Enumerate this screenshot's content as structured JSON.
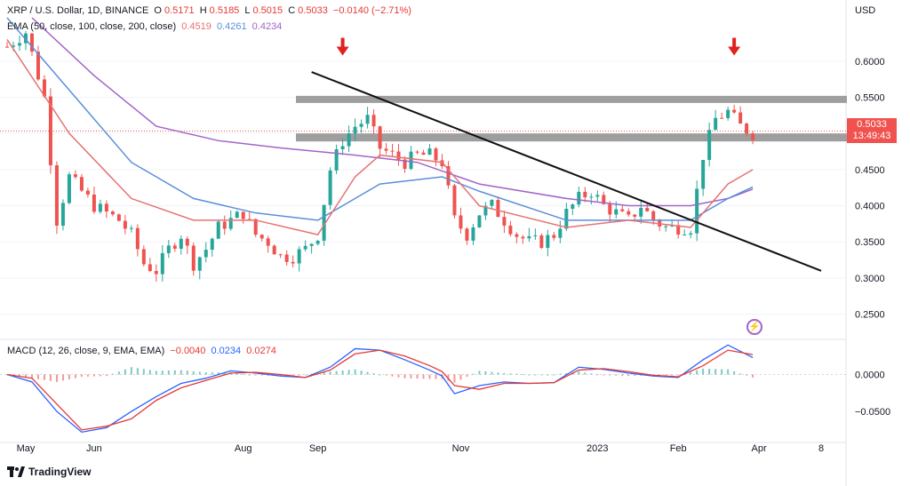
{
  "header": {
    "symbol": "XRP / U.S. Dollar, 1D, BINANCE",
    "o_label": "O",
    "o_value": "0.5171",
    "h_label": "H",
    "h_value": "0.5185",
    "l_label": "L",
    "l_value": "0.5015",
    "c_label": "C",
    "c_value": "0.5033",
    "change": "−0.0140 (−2.71%)"
  },
  "ema_legend": {
    "title": "EMA (50, close, 100, close, 200, close)",
    "ema50": "0.4519",
    "ema100": "0.4261",
    "ema200": "0.4234"
  },
  "macd_legend": {
    "title": "MACD (12, 26, close, 9, EMA, EMA)",
    "hist": "−0.0040",
    "macd": "0.0234",
    "signal": "0.0274"
  },
  "currency": "USD",
  "price_tag": {
    "price": "0.5033",
    "countdown": "13:49:43"
  },
  "price_axis": [
    "0.6000",
    "0.5500",
    "0.5000",
    "0.4500",
    "0.4000",
    "0.3500",
    "0.3000",
    "0.2500"
  ],
  "macd_axis": [
    "0.0000",
    "−0.0500"
  ],
  "time_axis": [
    "May",
    "Jun",
    "Aug",
    "Sep",
    "Nov",
    "2023",
    "Feb",
    "Apr",
    "8"
  ],
  "logo_text": "TradingView",
  "icons": {
    "logo": "tradingview-logo-icon",
    "flash": "lightning-icon",
    "arrow": "arrow-down-icon"
  },
  "colors": {
    "up": "#26a69a",
    "down": "#ef5350",
    "ema50": "#e57373",
    "ema100": "#5b8fd8",
    "ema200": "#a264c8",
    "macd": "#2962ff",
    "signal": "#e53935",
    "zone": "#9e9e9e",
    "trendline": "#111111",
    "arrow": "#e0221f",
    "price_tag": "#f0524f"
  },
  "chart_data": {
    "type": "candlestick",
    "symbol": "XRP/USD",
    "interval": "1D",
    "y_range": [
      0.22,
      0.66
    ],
    "ohlc_close_path": [
      [
        0,
        0.62
      ],
      [
        3,
        0.64
      ],
      [
        6,
        0.55
      ],
      [
        8,
        0.38
      ],
      [
        10,
        0.44
      ],
      [
        12,
        0.42
      ],
      [
        14,
        0.4
      ],
      [
        16,
        0.39
      ],
      [
        18,
        0.38
      ],
      [
        20,
        0.36
      ],
      [
        22,
        0.32
      ],
      [
        24,
        0.31
      ],
      [
        26,
        0.34
      ],
      [
        28,
        0.36
      ],
      [
        30,
        0.32
      ],
      [
        32,
        0.34
      ],
      [
        34,
        0.37
      ],
      [
        36,
        0.38
      ],
      [
        38,
        0.39
      ],
      [
        40,
        0.36
      ],
      [
        42,
        0.35
      ],
      [
        44,
        0.33
      ],
      [
        46,
        0.33
      ],
      [
        48,
        0.34
      ],
      [
        50,
        0.36
      ],
      [
        52,
        0.45
      ],
      [
        54,
        0.49
      ],
      [
        56,
        0.51
      ],
      [
        58,
        0.52
      ],
      [
        60,
        0.48
      ],
      [
        62,
        0.47
      ],
      [
        64,
        0.46
      ],
      [
        66,
        0.47
      ],
      [
        68,
        0.47
      ],
      [
        70,
        0.46
      ],
      [
        72,
        0.38
      ],
      [
        74,
        0.36
      ],
      [
        76,
        0.39
      ],
      [
        78,
        0.4
      ],
      [
        80,
        0.38
      ],
      [
        82,
        0.36
      ],
      [
        84,
        0.35
      ],
      [
        86,
        0.35
      ],
      [
        88,
        0.36
      ],
      [
        90,
        0.39
      ],
      [
        92,
        0.41
      ],
      [
        94,
        0.42
      ],
      [
        96,
        0.4
      ],
      [
        98,
        0.39
      ],
      [
        100,
        0.38
      ],
      [
        102,
        0.4
      ],
      [
        104,
        0.38
      ],
      [
        106,
        0.37
      ],
      [
        108,
        0.37
      ],
      [
        110,
        0.37
      ],
      [
        112,
        0.47
      ],
      [
        114,
        0.52
      ],
      [
        116,
        0.53
      ],
      [
        118,
        0.51
      ],
      [
        120,
        0.5
      ]
    ],
    "ema50_path": [
      [
        0,
        0.63
      ],
      [
        10,
        0.5
      ],
      [
        20,
        0.41
      ],
      [
        30,
        0.38
      ],
      [
        40,
        0.38
      ],
      [
        50,
        0.36
      ],
      [
        56,
        0.44
      ],
      [
        60,
        0.47
      ],
      [
        70,
        0.46
      ],
      [
        76,
        0.4
      ],
      [
        90,
        0.37
      ],
      [
        100,
        0.38
      ],
      [
        110,
        0.37
      ],
      [
        116,
        0.43
      ],
      [
        120,
        0.45
      ]
    ],
    "ema100_path": [
      [
        0,
        0.66
      ],
      [
        10,
        0.56
      ],
      [
        20,
        0.46
      ],
      [
        30,
        0.41
      ],
      [
        40,
        0.39
      ],
      [
        50,
        0.38
      ],
      [
        56,
        0.41
      ],
      [
        60,
        0.43
      ],
      [
        70,
        0.44
      ],
      [
        76,
        0.42
      ],
      [
        90,
        0.38
      ],
      [
        100,
        0.38
      ],
      [
        110,
        0.38
      ],
      [
        116,
        0.41
      ],
      [
        120,
        0.426
      ]
    ],
    "ema200_path": [
      [
        4,
        0.66
      ],
      [
        14,
        0.58
      ],
      [
        24,
        0.51
      ],
      [
        34,
        0.49
      ],
      [
        44,
        0.48
      ],
      [
        56,
        0.47
      ],
      [
        66,
        0.46
      ],
      [
        76,
        0.43
      ],
      [
        90,
        0.41
      ],
      [
        100,
        0.4
      ],
      [
        110,
        0.4
      ],
      [
        116,
        0.41
      ],
      [
        120,
        0.423
      ]
    ],
    "resistance_zones": [
      [
        0.545,
        0.552
      ],
      [
        0.492,
        0.5
      ]
    ],
    "trendline": {
      "from": [
        49,
        0.585
      ],
      "to": [
        131,
        0.31
      ]
    },
    "current_price": 0.5033,
    "macd": {
      "y_range": [
        -0.08,
        0.05
      ],
      "macd_path": [
        [
          0,
          0.0
        ],
        [
          4,
          -0.01
        ],
        [
          8,
          -0.05
        ],
        [
          12,
          -0.078
        ],
        [
          16,
          -0.072
        ],
        [
          20,
          -0.05
        ],
        [
          24,
          -0.03
        ],
        [
          28,
          -0.012
        ],
        [
          32,
          -0.005
        ],
        [
          36,
          0.005
        ],
        [
          40,
          0.002
        ],
        [
          44,
          -0.002
        ],
        [
          48,
          -0.004
        ],
        [
          52,
          0.01
        ],
        [
          56,
          0.035
        ],
        [
          60,
          0.033
        ],
        [
          64,
          0.02
        ],
        [
          68,
          0.006
        ],
        [
          70,
          -0.002
        ],
        [
          72,
          -0.026
        ],
        [
          76,
          -0.015
        ],
        [
          80,
          -0.01
        ],
        [
          84,
          -0.012
        ],
        [
          88,
          -0.011
        ],
        [
          92,
          0.01
        ],
        [
          96,
          0.007
        ],
        [
          100,
          0.002
        ],
        [
          104,
          -0.002
        ],
        [
          108,
          -0.004
        ],
        [
          112,
          0.02
        ],
        [
          116,
          0.04
        ],
        [
          120,
          0.023
        ]
      ],
      "signal_path": [
        [
          0,
          0.0
        ],
        [
          4,
          -0.005
        ],
        [
          8,
          -0.04
        ],
        [
          12,
          -0.075
        ],
        [
          16,
          -0.07
        ],
        [
          20,
          -0.06
        ],
        [
          24,
          -0.035
        ],
        [
          28,
          -0.018
        ],
        [
          32,
          -0.008
        ],
        [
          36,
          0.002
        ],
        [
          40,
          0.003
        ],
        [
          44,
          0.0
        ],
        [
          48,
          -0.004
        ],
        [
          52,
          0.006
        ],
        [
          56,
          0.028
        ],
        [
          60,
          0.033
        ],
        [
          64,
          0.025
        ],
        [
          68,
          0.012
        ],
        [
          70,
          0.004
        ],
        [
          72,
          -0.015
        ],
        [
          76,
          -0.02
        ],
        [
          80,
          -0.012
        ],
        [
          84,
          -0.012
        ],
        [
          88,
          -0.011
        ],
        [
          92,
          0.006
        ],
        [
          96,
          0.008
        ],
        [
          100,
          0.004
        ],
        [
          104,
          -0.001
        ],
        [
          108,
          -0.003
        ],
        [
          112,
          0.012
        ],
        [
          116,
          0.033
        ],
        [
          120,
          0.027
        ]
      ]
    }
  }
}
